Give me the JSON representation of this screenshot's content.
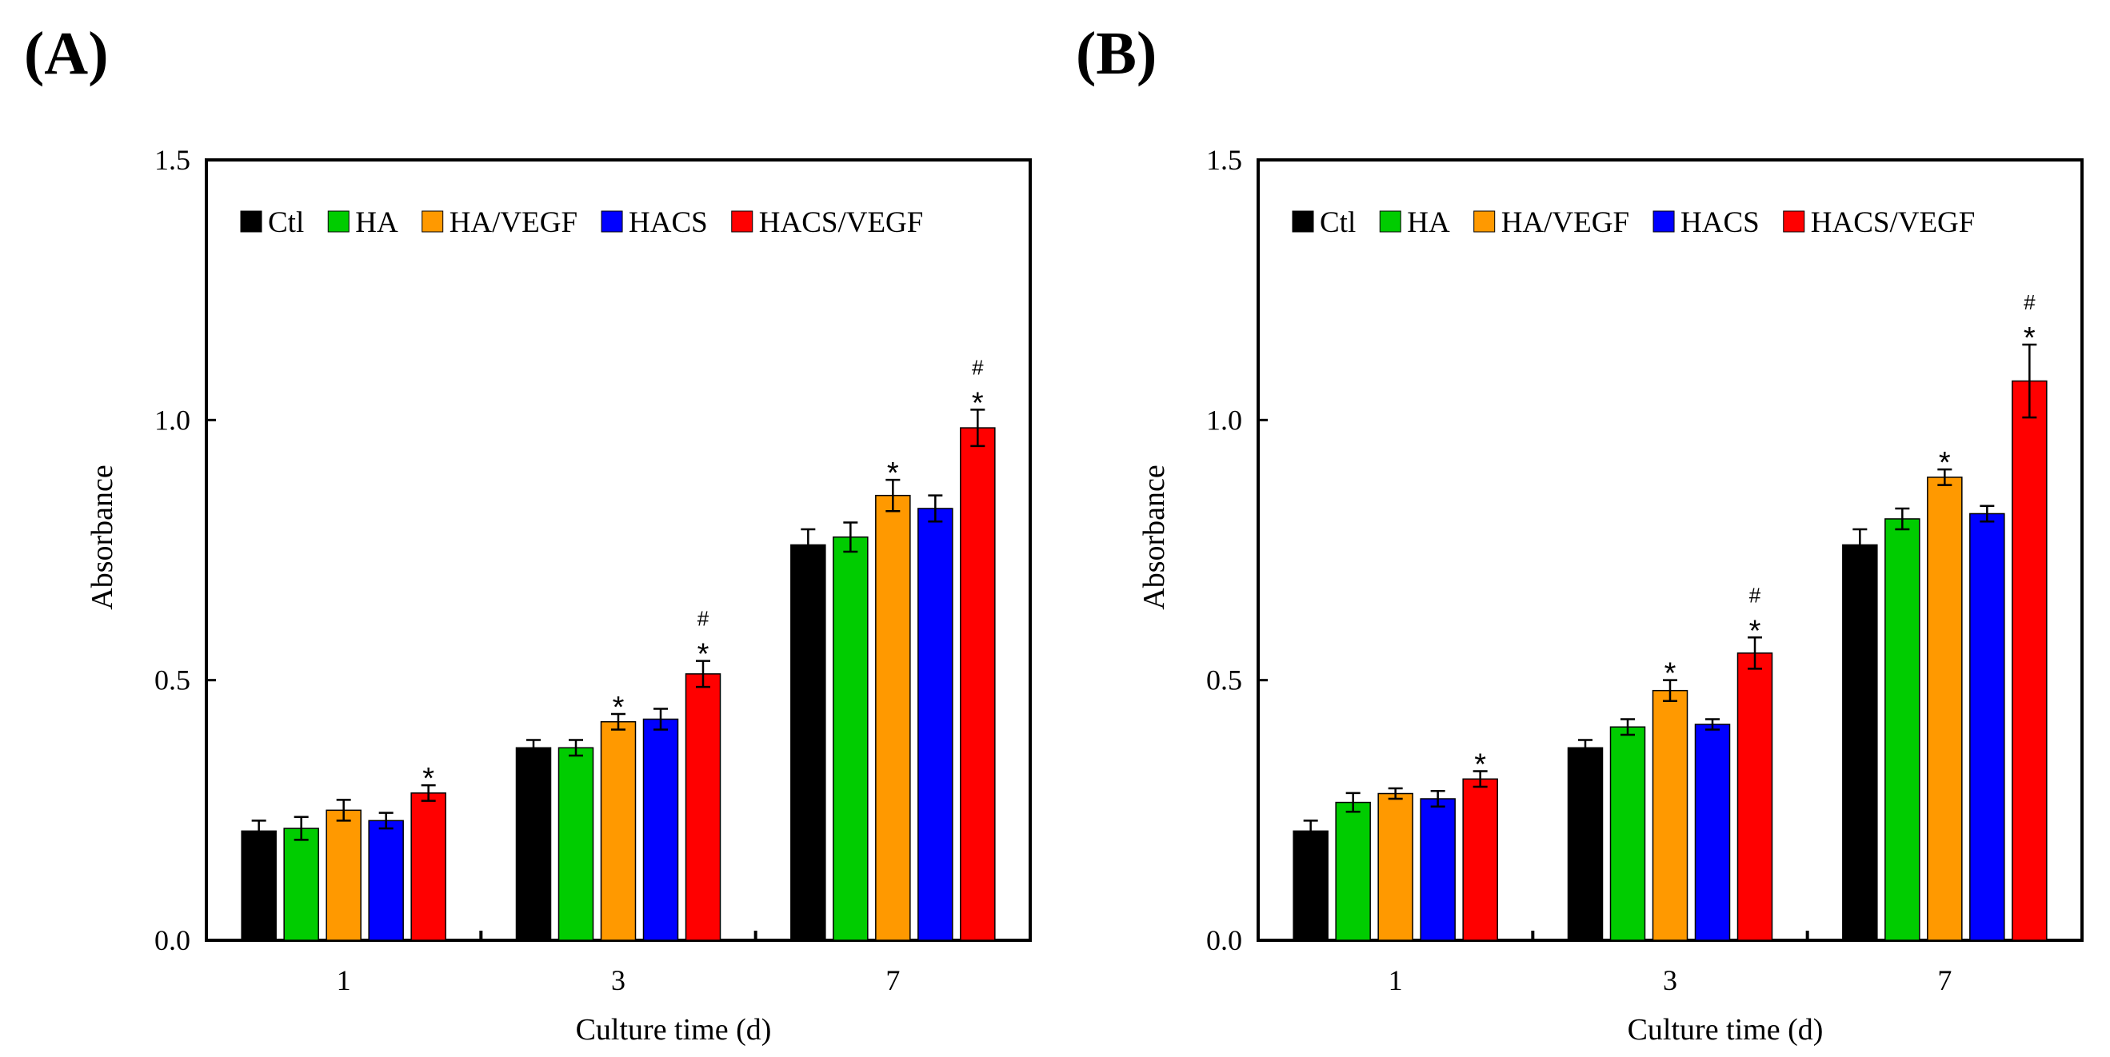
{
  "chart_data": [
    {
      "type": "bar",
      "panel_label": "(A)",
      "categories": [
        "1",
        "3",
        "7"
      ],
      "xlabel": "Culture time (d)",
      "ylabel": "Absorbance",
      "ylim": [
        0,
        1.5
      ],
      "yticks": [
        "0.0",
        "0.5",
        "1.0",
        "1.5"
      ],
      "legend_position": "top",
      "series": [
        {
          "name": "Ctl",
          "color": "#000000",
          "values": [
            0.21,
            0.37,
            0.76
          ],
          "errors": [
            0.02,
            0.015,
            0.03
          ],
          "annotations": [
            [],
            [],
            []
          ]
        },
        {
          "name": "HA",
          "color": "#00CC00",
          "values": [
            0.215,
            0.37,
            0.775
          ],
          "errors": [
            0.022,
            0.015,
            0.028
          ],
          "annotations": [
            [],
            [],
            []
          ]
        },
        {
          "name": "HA/VEGF",
          "color": "#FF9900",
          "values": [
            0.25,
            0.42,
            0.855
          ],
          "errors": [
            0.02,
            0.015,
            0.03
          ],
          "annotations": [
            [],
            [
              "*"
            ],
            [
              "*"
            ]
          ]
        },
        {
          "name": "HACS",
          "color": "#0000FF",
          "values": [
            0.23,
            0.425,
            0.83
          ],
          "errors": [
            0.015,
            0.02,
            0.025
          ],
          "annotations": [
            [],
            [],
            []
          ]
        },
        {
          "name": "HACS/VEGF",
          "color": "#FF0000",
          "values": [
            0.283,
            0.512,
            0.985
          ],
          "errors": [
            0.015,
            0.025,
            0.035
          ],
          "annotations": [
            [
              "*"
            ],
            [
              "*",
              "#"
            ],
            [
              "*",
              "#"
            ]
          ]
        }
      ]
    },
    {
      "type": "bar",
      "panel_label": "(B)",
      "categories": [
        "1",
        "3",
        "7"
      ],
      "xlabel": "Culture time (d)",
      "ylabel": "Absorbance",
      "ylim": [
        0,
        1.5
      ],
      "yticks": [
        "0.0",
        "0.5",
        "1.0",
        "1.5"
      ],
      "legend_position": "top",
      "series": [
        {
          "name": "Ctl",
          "color": "#000000",
          "values": [
            0.21,
            0.37,
            0.76
          ],
          "errors": [
            0.02,
            0.015,
            0.03
          ],
          "annotations": [
            [],
            [],
            []
          ]
        },
        {
          "name": "HA",
          "color": "#00CC00",
          "values": [
            0.265,
            0.41,
            0.81
          ],
          "errors": [
            0.018,
            0.015,
            0.02
          ],
          "annotations": [
            [],
            [],
            []
          ]
        },
        {
          "name": "HA/VEGF",
          "color": "#FF9900",
          "values": [
            0.282,
            0.48,
            0.89
          ],
          "errors": [
            0.01,
            0.02,
            0.015
          ],
          "annotations": [
            [],
            [
              "*"
            ],
            [
              "*"
            ]
          ]
        },
        {
          "name": "HACS",
          "color": "#0000FF",
          "values": [
            0.272,
            0.415,
            0.82
          ],
          "errors": [
            0.015,
            0.01,
            0.015
          ],
          "annotations": [
            [],
            [],
            []
          ]
        },
        {
          "name": "HACS/VEGF",
          "color": "#FF0000",
          "values": [
            0.31,
            0.552,
            1.075
          ],
          "errors": [
            0.015,
            0.03,
            0.07
          ],
          "annotations": [
            [
              "*"
            ],
            [
              "*",
              "#"
            ],
            [
              "*",
              "#"
            ]
          ]
        }
      ]
    }
  ]
}
